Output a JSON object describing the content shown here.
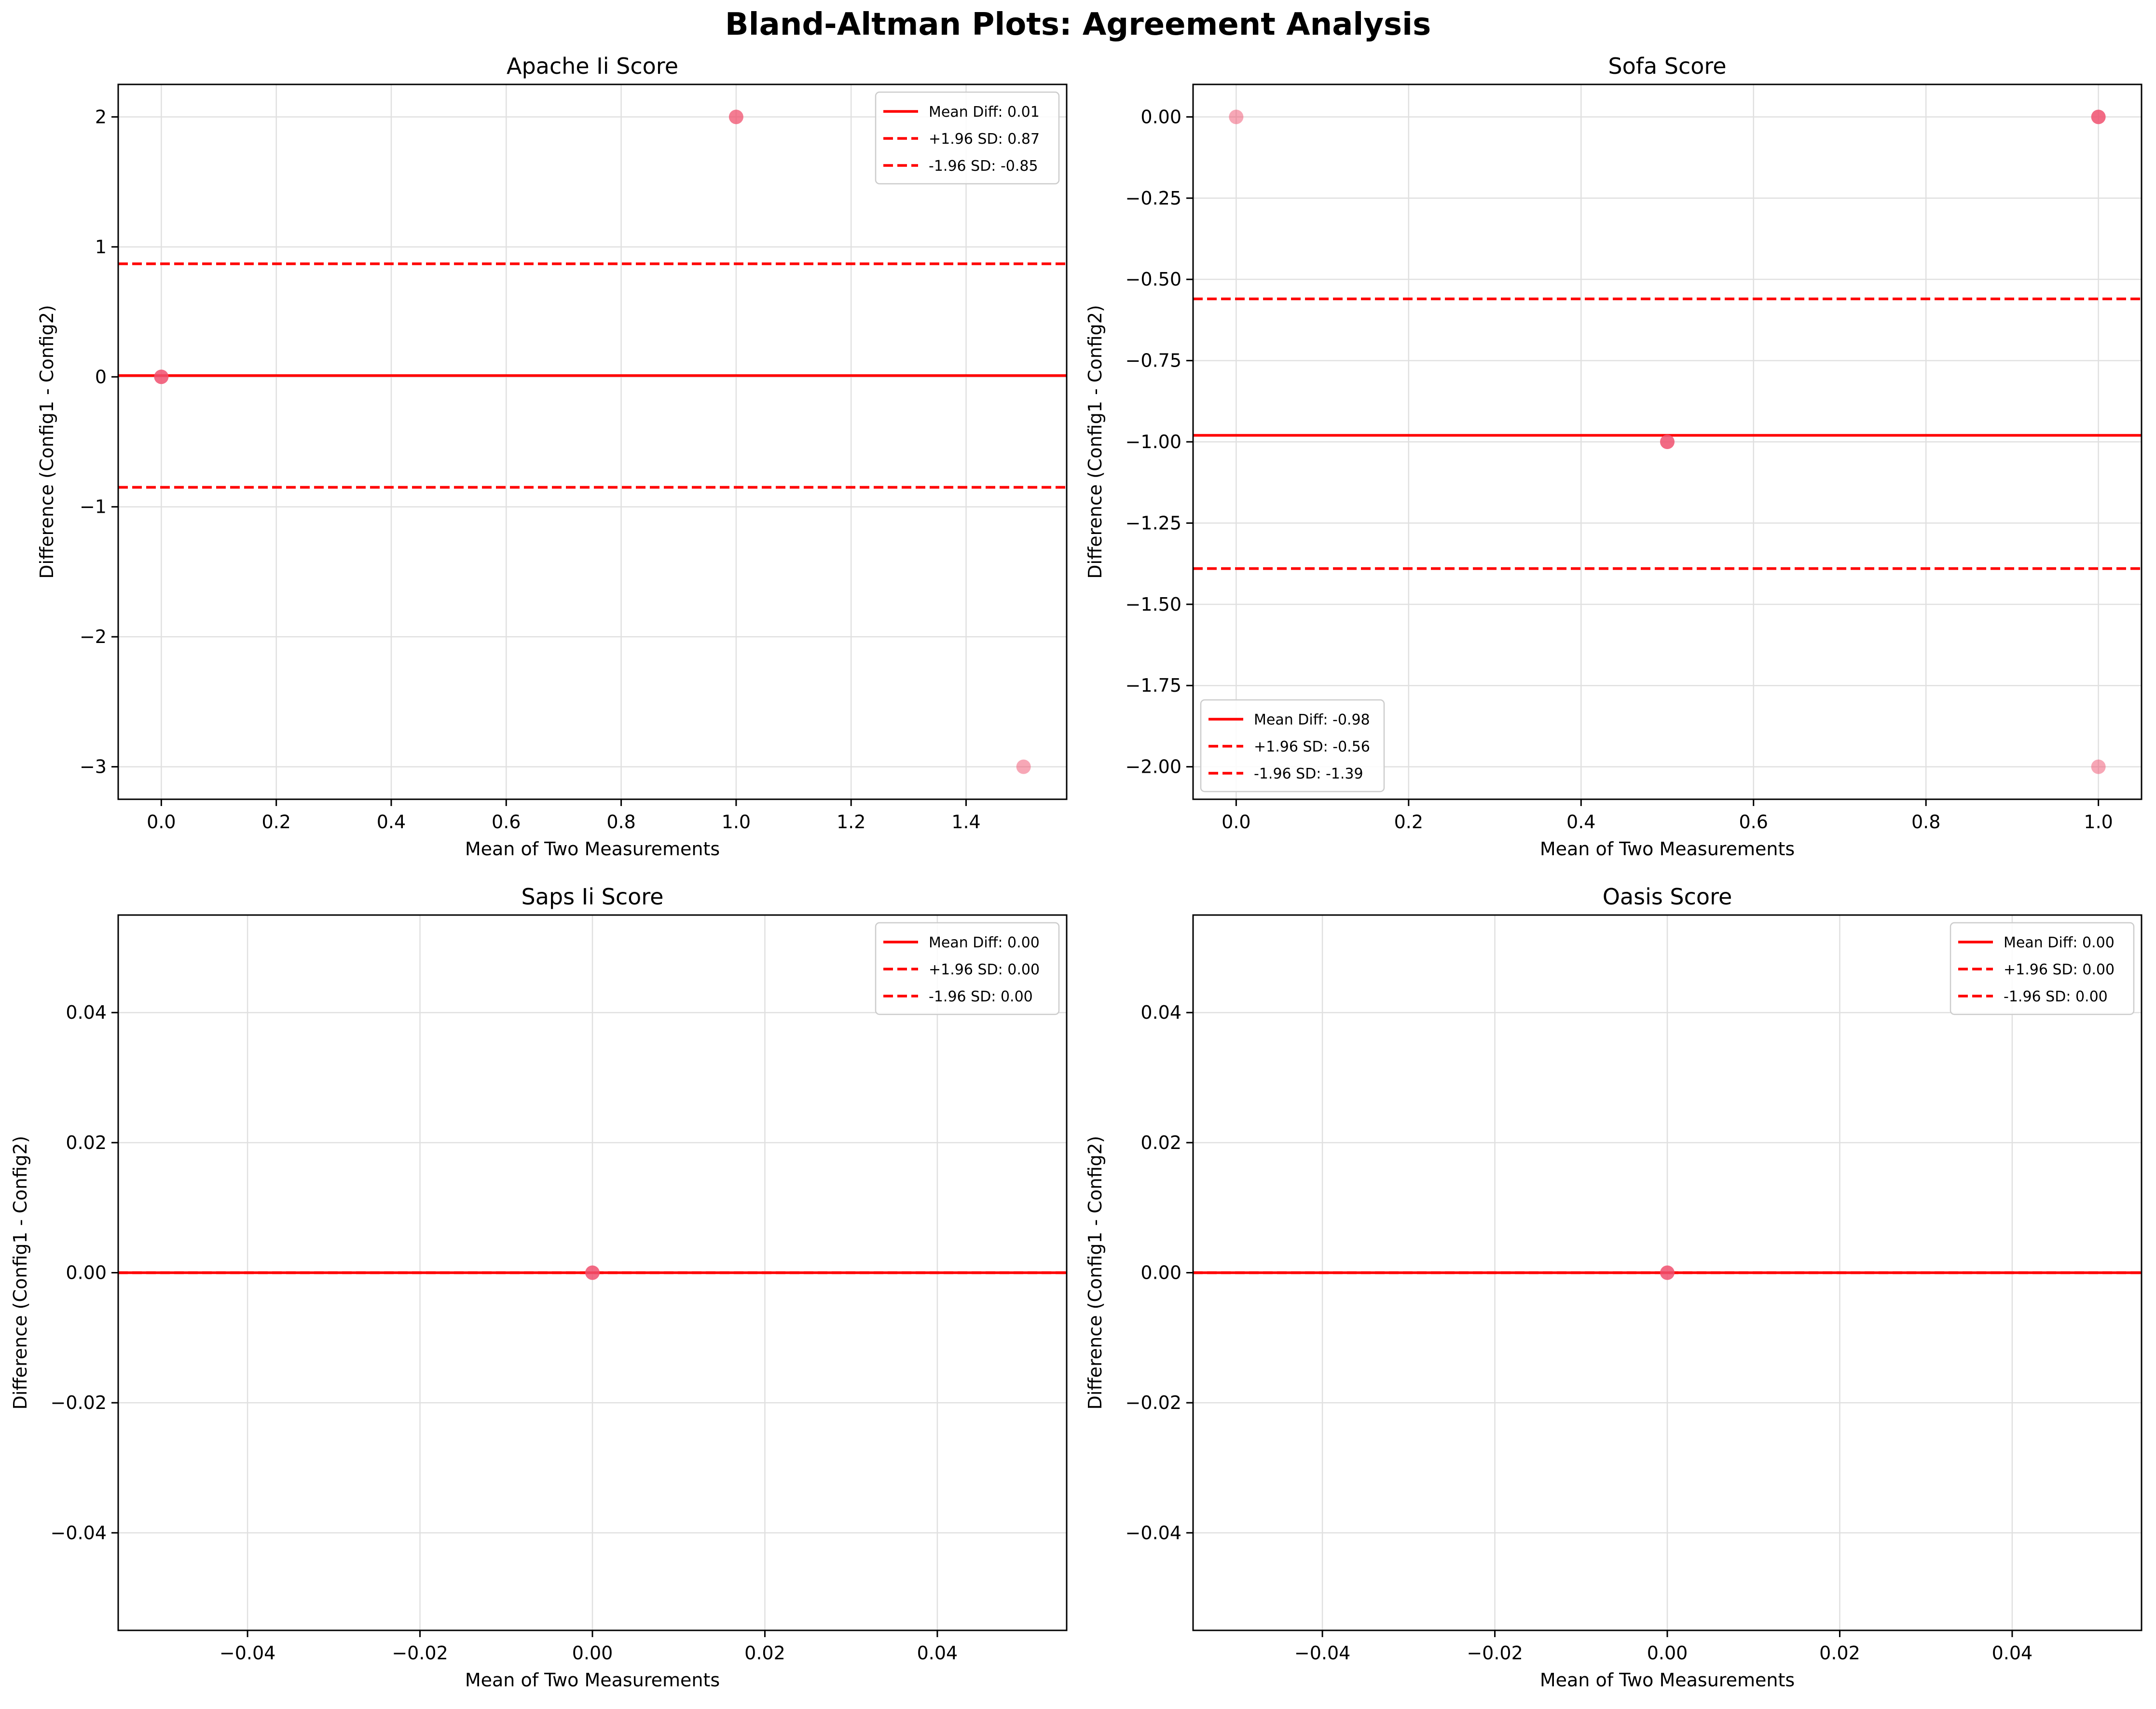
{
  "figure_title": "Bland-Altman Plots: Agreement Analysis",
  "colors": {
    "line": "#ff0000",
    "point": "#f0506e",
    "grid": "#e0e0e0",
    "axes": "#000000"
  },
  "chart_data": [
    {
      "type": "scatter",
      "title": "Apache Ii Score",
      "xlabel": "Mean of Two Measurements",
      "ylabel": "Difference (Config1 - Config2)",
      "xlim": [
        -0.075,
        1.575
      ],
      "ylim": [
        -3.25,
        2.25
      ],
      "xticks": [
        0.0,
        0.2,
        0.4,
        0.6,
        0.8,
        1.0,
        1.2,
        1.4
      ],
      "xtick_labels": [
        "0.0",
        "0.2",
        "0.4",
        "0.6",
        "0.8",
        "1.0",
        "1.2",
        "1.4"
      ],
      "yticks": [
        -3,
        -2,
        -1,
        0,
        1,
        2
      ],
      "ytick_labels": [
        "−3",
        "−2",
        "−1",
        "0",
        "1",
        "2"
      ],
      "points": [
        {
          "x": 0.0,
          "y": 0.0,
          "opacity": 0.85
        },
        {
          "x": 1.0,
          "y": 2.0,
          "opacity": 0.75
        },
        {
          "x": 1.5,
          "y": -3.0,
          "opacity": 0.5
        }
      ],
      "mean_diff": 0.01,
      "upper_loa": 0.87,
      "lower_loa": -0.85,
      "grid": true,
      "legend_position": "top-right",
      "legend": [
        "Mean Diff: 0.01",
        "+1.96 SD: 0.87",
        "-1.96 SD: -0.85"
      ]
    },
    {
      "type": "scatter",
      "title": "Sofa Score",
      "xlabel": "Mean of Two Measurements",
      "ylabel": "Difference (Config1 - Config2)",
      "xlim": [
        -0.05,
        1.05
      ],
      "ylim": [
        -2.1,
        0.1
      ],
      "xticks": [
        0.0,
        0.2,
        0.4,
        0.6,
        0.8,
        1.0
      ],
      "xtick_labels": [
        "0.0",
        "0.2",
        "0.4",
        "0.6",
        "0.8",
        "1.0"
      ],
      "yticks": [
        0.0,
        -0.25,
        -0.5,
        -0.75,
        -1.0,
        -1.25,
        -1.5,
        -1.75,
        -2.0
      ],
      "ytick_labels": [
        "0.00",
        "−0.25",
        "−0.50",
        "−0.75",
        "−1.00",
        "−1.25",
        "−1.50",
        "−1.75",
        "−2.00"
      ],
      "points": [
        {
          "x": 0.0,
          "y": 0.0,
          "opacity": 0.5
        },
        {
          "x": 0.5,
          "y": -1.0,
          "opacity": 0.85
        },
        {
          "x": 1.0,
          "y": 0.0,
          "opacity": 0.85
        },
        {
          "x": 1.0,
          "y": -2.0,
          "opacity": 0.5
        }
      ],
      "mean_diff": -0.98,
      "upper_loa": -0.56,
      "lower_loa": -1.39,
      "grid": true,
      "legend_position": "bottom-left",
      "legend": [
        "Mean Diff: -0.98",
        "+1.96 SD: -0.56",
        "-1.96 SD: -1.39"
      ]
    },
    {
      "type": "scatter",
      "title": "Saps Ii Score",
      "xlabel": "Mean of Two Measurements",
      "ylabel": "Difference (Config1 - Config2)",
      "xlim": [
        -0.055,
        0.055
      ],
      "ylim": [
        -0.055,
        0.055
      ],
      "xticks": [
        -0.04,
        -0.02,
        0.0,
        0.02,
        0.04
      ],
      "xtick_labels": [
        "−0.04",
        "−0.02",
        "0.00",
        "0.02",
        "0.04"
      ],
      "yticks": [
        -0.04,
        -0.02,
        0.0,
        0.02,
        0.04
      ],
      "ytick_labels": [
        "−0.04",
        "−0.02",
        "0.00",
        "0.02",
        "0.04"
      ],
      "points": [
        {
          "x": 0.0,
          "y": 0.0,
          "opacity": 0.85
        }
      ],
      "mean_diff": 0.0,
      "upper_loa": 0.0,
      "lower_loa": 0.0,
      "grid": true,
      "legend_position": "top-right",
      "legend": [
        "Mean Diff: 0.00",
        "+1.96 SD: 0.00",
        "-1.96 SD: 0.00"
      ]
    },
    {
      "type": "scatter",
      "title": "Oasis Score",
      "xlabel": "Mean of Two Measurements",
      "ylabel": "Difference (Config1 - Config2)",
      "xlim": [
        -0.055,
        0.055
      ],
      "ylim": [
        -0.055,
        0.055
      ],
      "xticks": [
        -0.04,
        -0.02,
        0.0,
        0.02,
        0.04
      ],
      "xtick_labels": [
        "−0.04",
        "−0.02",
        "0.00",
        "0.02",
        "0.04"
      ],
      "yticks": [
        -0.04,
        -0.02,
        0.0,
        0.02,
        0.04
      ],
      "ytick_labels": [
        "−0.04",
        "−0.02",
        "0.00",
        "0.02",
        "0.04"
      ],
      "points": [
        {
          "x": 0.0,
          "y": 0.0,
          "opacity": 0.85
        }
      ],
      "mean_diff": 0.0,
      "upper_loa": 0.0,
      "lower_loa": 0.0,
      "grid": true,
      "legend_position": "top-right",
      "legend": [
        "Mean Diff: 0.00",
        "+1.96 SD: 0.00",
        "-1.96 SD: 0.00"
      ]
    }
  ]
}
